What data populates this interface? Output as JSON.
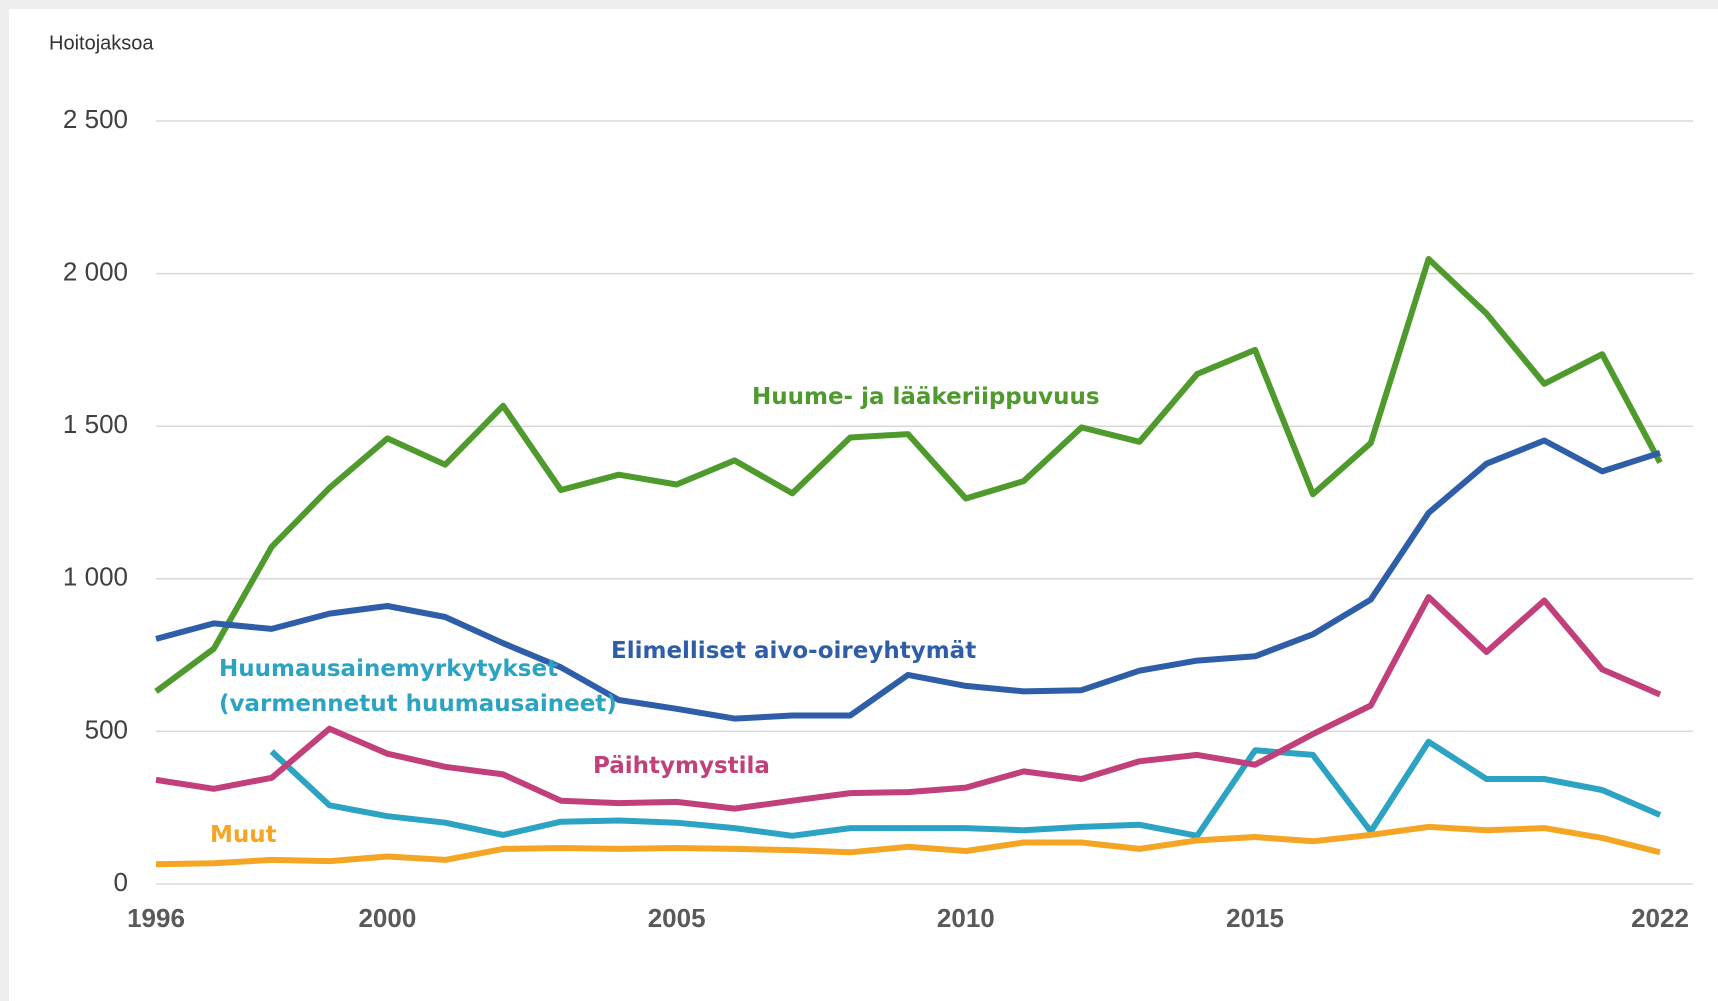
{
  "chart_data": {
    "type": "line",
    "y_label": "Hoitojaksoa",
    "x": [
      1996,
      1997,
      1998,
      1999,
      2000,
      2001,
      2002,
      2003,
      2004,
      2005,
      2006,
      2007,
      2008,
      2009,
      2010,
      2011,
      2012,
      2013,
      2014,
      2015,
      2016,
      2017,
      2018,
      2019,
      2020,
      2021,
      2022
    ],
    "xlim": [
      1996,
      2022
    ],
    "xticks": [
      1996,
      2000,
      2005,
      2010,
      2015,
      2022
    ],
    "ylim": [
      0,
      2500
    ],
    "yticks": [
      0,
      500,
      {
        "value": 1000,
        "label": "1 000"
      },
      {
        "value": 1500,
        "label": "1 500"
      },
      {
        "value": 2000,
        "label": "2 000"
      },
      {
        "value": 2500,
        "label": "2 500"
      }
    ],
    "grid": true,
    "series": [
      {
        "name": "Huume- ja lääkeriippuvuus",
        "color": "#4e9a2c",
        "values": [
          631,
          771,
          1105,
          1298,
          1460,
          1374,
          1567,
          1291,
          1341,
          1309,
          1388,
          1280,
          1463,
          1474,
          1263,
          1320,
          1496,
          1449,
          1671,
          1750,
          1277,
          1445,
          2048,
          1869,
          1639,
          1736,
          1381
        ]
      },
      {
        "name": "Elimelliset aivo-oireyhtymät",
        "color": "#2f5ea8",
        "values": [
          803,
          854,
          836,
          886,
          911,
          875,
          789,
          710,
          603,
          574,
          542,
          552,
          552,
          685,
          649,
          631,
          635,
          699,
          732,
          746,
          818,
          932,
          1216,
          1377,
          1453,
          1352,
          1413
        ]
      },
      {
        "name": "Huumausainemyrkytykset (varmennetut huumausaineet)",
        "color": "#2ca3c3",
        "values": [
          null,
          null,
          434,
          258,
          222,
          201,
          161,
          204,
          208,
          201,
          183,
          158,
          183,
          183,
          183,
          176,
          187,
          194,
          158,
          438,
          423,
          172,
          466,
          344,
          344,
          308,
          226
        ]
      },
      {
        "name": "Päihtymystila",
        "color": "#c13f7a",
        "values": [
          341,
          312,
          348,
          509,
          427,
          384,
          359,
          273,
          265,
          269,
          247,
          273,
          298,
          301,
          316,
          369,
          344,
          402,
          423,
          391,
          491,
          585,
          940,
          760,
          929,
          703,
          621
        ]
      },
      {
        "name": "Muut",
        "color": "#f5a524",
        "values": [
          65,
          68,
          79,
          75,
          90,
          79,
          115,
          118,
          115,
          118,
          115,
          111,
          104,
          122,
          108,
          136,
          136,
          115,
          143,
          154,
          140,
          161,
          187,
          176,
          183,
          151,
          104
        ]
      }
    ]
  }
}
